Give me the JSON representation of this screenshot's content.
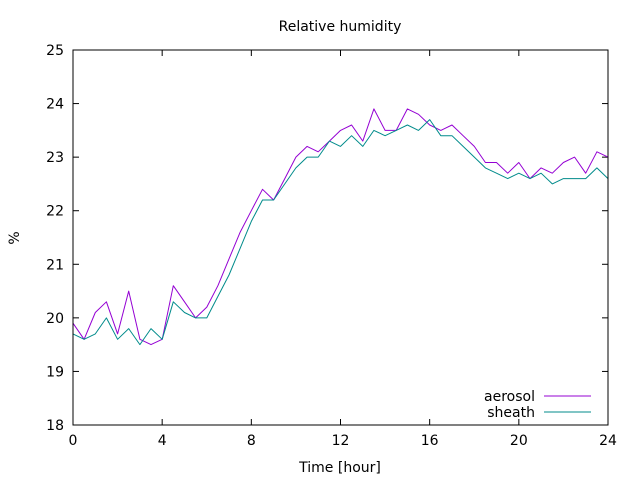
{
  "chart_data": {
    "type": "line",
    "title": "Relative humidity",
    "xlabel": "Time [hour]",
    "ylabel": "%",
    "xlim": [
      0,
      24
    ],
    "ylim": [
      18,
      25
    ],
    "xticks": [
      0,
      4,
      8,
      12,
      16,
      20,
      24
    ],
    "xtick_labels": [
      "0",
      "4",
      "8",
      "12",
      "16",
      "20",
      "24"
    ],
    "yticks": [
      18,
      19,
      20,
      21,
      22,
      23,
      24,
      25
    ],
    "ytick_labels": [
      "18",
      "19",
      "20",
      "21",
      "22",
      "23",
      "24",
      "25"
    ],
    "grid": false,
    "legend_position": "bottom-right",
    "x": [
      0,
      0.5,
      1,
      1.5,
      2,
      2.5,
      3,
      3.5,
      4,
      4.5,
      5,
      5.5,
      6,
      6.5,
      7,
      7.5,
      8,
      8.5,
      9,
      9.5,
      10,
      10.5,
      11,
      11.5,
      12,
      12.5,
      13,
      13.5,
      14,
      14.5,
      15,
      15.5,
      16,
      16.5,
      17,
      17.5,
      18,
      18.5,
      19,
      19.5,
      20,
      20.5,
      21,
      21.5,
      22,
      22.5,
      23,
      23.5,
      24
    ],
    "series": [
      {
        "name": "aerosol",
        "color": "#9400d3",
        "values": [
          19.9,
          19.6,
          20.1,
          20.3,
          19.7,
          20.5,
          19.6,
          19.5,
          19.6,
          20.6,
          20.3,
          20.0,
          20.2,
          20.6,
          21.1,
          21.6,
          22.0,
          22.4,
          22.2,
          22.6,
          23.0,
          23.2,
          23.1,
          23.3,
          23.5,
          23.6,
          23.3,
          23.9,
          23.5,
          23.5,
          23.9,
          23.8,
          23.6,
          23.5,
          23.6,
          23.4,
          23.2,
          22.9,
          22.9,
          22.7,
          22.9,
          22.6,
          22.8,
          22.7,
          22.9,
          23.0,
          22.7,
          23.1,
          23.0
        ]
      },
      {
        "name": "sheath",
        "color": "#008b8b",
        "values": [
          19.7,
          19.6,
          19.7,
          20.0,
          19.6,
          19.8,
          19.5,
          19.8,
          19.6,
          20.3,
          20.1,
          20.0,
          20.0,
          20.4,
          20.8,
          21.3,
          21.8,
          22.2,
          22.2,
          22.5,
          22.8,
          23.0,
          23.0,
          23.3,
          23.2,
          23.4,
          23.2,
          23.5,
          23.4,
          23.5,
          23.6,
          23.5,
          23.7,
          23.4,
          23.4,
          23.2,
          23.0,
          22.8,
          22.7,
          22.6,
          22.7,
          22.6,
          22.7,
          22.5,
          22.6,
          22.6,
          22.6,
          22.8,
          22.6
        ]
      }
    ]
  }
}
